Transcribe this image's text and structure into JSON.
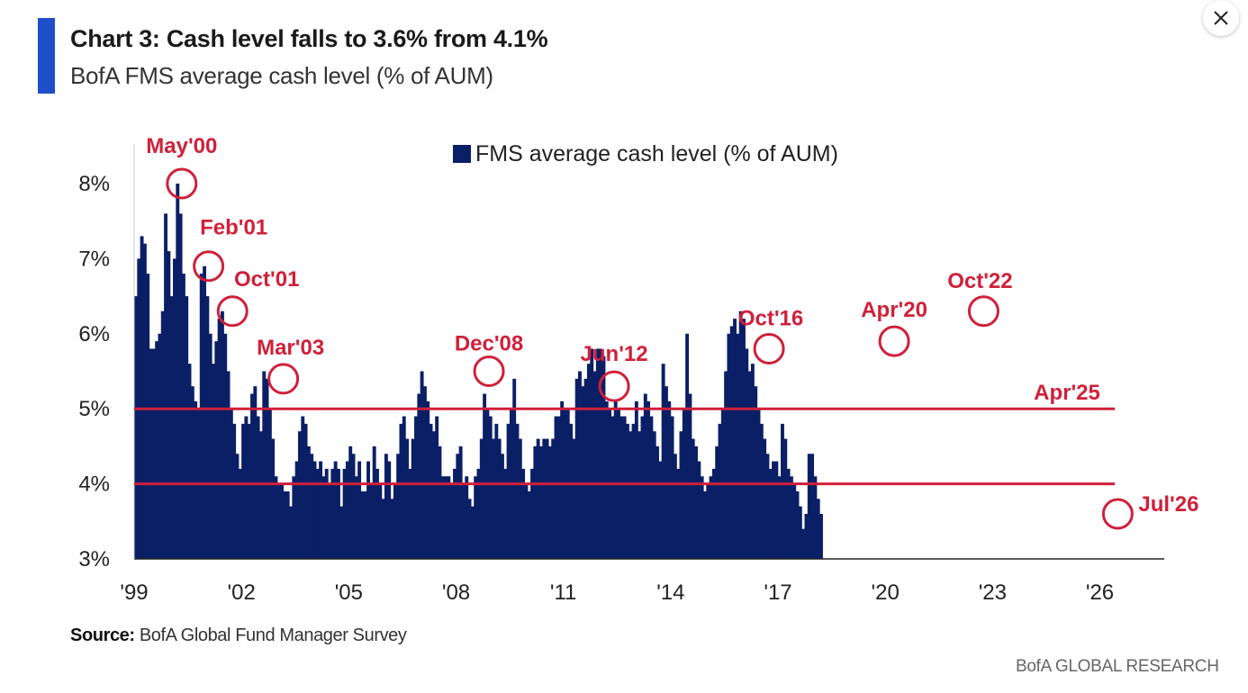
{
  "header": {
    "title": "Chart 3: Cash level falls to 3.6% from 4.1%",
    "subtitle": "BofA FMS average cash level (% of AUM)"
  },
  "footer": {
    "source_label": "Source:",
    "source_text": "BofA Global Fund Manager Survey",
    "brand": "BofA GLOBAL RESEARCH"
  },
  "colors": {
    "accent": "#1f4ec9",
    "bars": "#0b1f66",
    "annotation": "#d0203a"
  },
  "icons": {
    "close": "close-icon"
  },
  "chart_data": {
    "type": "bar",
    "legend": "FMS average cash level (% of AUM)",
    "legend_position": "top-center",
    "ylim": [
      3,
      8.3
    ],
    "yticks": [
      "3%",
      "4%",
      "5%",
      "6%",
      "7%",
      "8%"
    ],
    "ytick_values": [
      3,
      4,
      5,
      6,
      7,
      8
    ],
    "xtick_labels": [
      "'99",
      "'02",
      "'05",
      "'08",
      "'11",
      "'14",
      "'17",
      "'20",
      "'23",
      "'26"
    ],
    "xtick_years": [
      1999,
      2002,
      2005,
      2008,
      2011,
      2014,
      2017,
      2020,
      2023,
      2026
    ],
    "xlim_years": [
      1999,
      2027.8
    ],
    "grid": false,
    "reference_lines": [
      5.0,
      4.0
    ],
    "series": [
      {
        "x_start": 1999.0,
        "x_step": 0.0833,
        "values": [
          6.5,
          7.0,
          7.3,
          7.2,
          6.8,
          5.8,
          5.8,
          5.9,
          6.0,
          6.3,
          7.6,
          7.1,
          6.5,
          7.0,
          8.0,
          7.6,
          6.8,
          6.5,
          5.6,
          5.3,
          5.1,
          5.0,
          6.8,
          6.9,
          6.5,
          6.0,
          5.6,
          5.9,
          6.2,
          6.3,
          6.0,
          5.5,
          5.0,
          4.8,
          4.4,
          4.2,
          4.8,
          4.9,
          4.8,
          5.2,
          5.3,
          4.9,
          4.7,
          5.5,
          5.4,
          5.0,
          4.6,
          4.1,
          4.0,
          4.0,
          3.9,
          3.9,
          3.7,
          4.1,
          4.3,
          4.7,
          4.9,
          4.8,
          4.5,
          4.4,
          4.3,
          4.2,
          4.3,
          4.1,
          4.2,
          4.0,
          4.2,
          4.3,
          4.2,
          3.7,
          4.2,
          4.3,
          4.5,
          4.4,
          4.1,
          4.3,
          3.9,
          3.9,
          4.3,
          4.0,
          4.5,
          4.2,
          4.0,
          3.8,
          4.4,
          4.3,
          3.8,
          4.0,
          4.4,
          4.8,
          4.9,
          4.6,
          4.2,
          4.6,
          4.9,
          5.2,
          5.5,
          5.3,
          5.1,
          4.8,
          4.7,
          4.9,
          4.5,
          4.1,
          4.1,
          4.1,
          4.0,
          4.2,
          4.4,
          4.5,
          4.0,
          4.1,
          3.8,
          3.7,
          4.1,
          4.2,
          4.6,
          5.2,
          5.0,
          4.9,
          4.6,
          4.8,
          4.6,
          4.4,
          4.2,
          4.8,
          5.0,
          5.4,
          4.8,
          4.6,
          4.2,
          4.0,
          3.9,
          4.2,
          4.5,
          4.6,
          4.5,
          4.6,
          4.6,
          4.5,
          4.6,
          4.9,
          4.9,
          5.1,
          5.0,
          5.0,
          4.8,
          4.6,
          5.4,
          5.5,
          5.3,
          5.4,
          5.6,
          5.8,
          5.5,
          5.8,
          5.8,
          5.7,
          5.1,
          5.0,
          4.9,
          5.1,
          5.0,
          4.9,
          4.9,
          4.8,
          4.7,
          4.8,
          5.1,
          4.7,
          4.9,
          5.2,
          5.1,
          4.9,
          4.7,
          4.5,
          4.3,
          5.6,
          5.3,
          5.1,
          4.9,
          4.4,
          4.2,
          4.7,
          5.0,
          6.0,
          5.2,
          4.6,
          4.5,
          4.3,
          4.1,
          3.9,
          4.0,
          4.1,
          4.2,
          4.5,
          4.8,
          5.0,
          5.5,
          6.0,
          6.1,
          6.2,
          6.0,
          6.3,
          6.2,
          5.8,
          5.5,
          5.6,
          5.3,
          5.0,
          4.8,
          4.6,
          4.4,
          4.2,
          4.3,
          4.3,
          4.1,
          4.8,
          4.6,
          4.2,
          4.1,
          4.0,
          3.9,
          3.7,
          3.4,
          3.6,
          4.4,
          4.4,
          4.1,
          3.8,
          3.6
        ]
      }
    ],
    "annotations": [
      {
        "label": "May'00",
        "date": 2000.33,
        "value": 8.0
      },
      {
        "label": "Feb'01",
        "date": 2001.08,
        "value": 6.9
      },
      {
        "label": "Oct'01",
        "date": 2001.75,
        "value": 6.3
      },
      {
        "label": "Mar'03",
        "date": 2003.17,
        "value": 5.4
      },
      {
        "label": "Dec'08",
        "date": 2008.92,
        "value": 5.5
      },
      {
        "label": "Jun'12",
        "date": 2012.42,
        "value": 5.3
      },
      {
        "label": "Oct'16",
        "date": 2016.75,
        "value": 5.8
      },
      {
        "label": "Apr'20",
        "date": 2020.25,
        "value": 5.9
      },
      {
        "label": "Oct'22",
        "date": 2022.75,
        "value": 6.3
      },
      {
        "label": "Apr'25",
        "date": null,
        "value": null
      },
      {
        "label": "Jul'26",
        "date": 2026.5,
        "value": 3.6
      }
    ]
  }
}
